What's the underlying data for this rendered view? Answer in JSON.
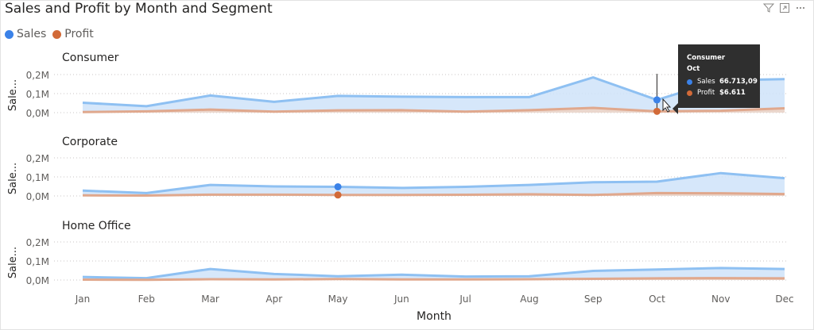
{
  "visual": {
    "title": "Sales and Profit by Month and Segment",
    "toolbar_icons": [
      "filter-icon",
      "focus-mode-icon",
      "more-options-icon"
    ]
  },
  "legend": [
    {
      "name": "Sales",
      "color": "#3b82e8"
    },
    {
      "name": "Profit",
      "color": "#d26a38"
    }
  ],
  "chart_data": {
    "type": "area",
    "title": "Sales and Profit by Month and Segment",
    "xlabel": "Month",
    "ylabel": "Sale...",
    "categories": [
      "Jan",
      "Feb",
      "Mar",
      "Apr",
      "May",
      "Jun",
      "Jul",
      "Aug",
      "Sep",
      "Oct",
      "Nov",
      "Dec"
    ],
    "ylim": [
      0,
      0.25
    ],
    "ytick_values": [
      0,
      0.1,
      0.2
    ],
    "ytick_labels": [
      "0,0M",
      "0,1M",
      "0,2M"
    ],
    "units": "millions",
    "grid": "horizontal dotted",
    "colors": {
      "sales": "#8ec0f2",
      "sales_fill": "#cfe3f9",
      "profit": "#e0a88d",
      "profit_fill": "#edd5c8",
      "highlight_sales": "#3b82e8",
      "highlight_profit": "#d26a38"
    },
    "panels": [
      {
        "segment": "Consumer",
        "series": [
          {
            "name": "Sales",
            "values": [
              0.052,
              0.034,
              0.09,
              0.057,
              0.088,
              0.084,
              0.082,
              0.082,
              0.185,
              0.067,
              0.17,
              0.176
            ]
          },
          {
            "name": "Profit",
            "values": [
              0.003,
              0.007,
              0.016,
              0.005,
              0.012,
              0.013,
              0.005,
              0.013,
              0.025,
              0.007,
              0.01,
              0.023
            ]
          }
        ]
      },
      {
        "segment": "Corporate",
        "series": [
          {
            "name": "Sales",
            "values": [
              0.028,
              0.015,
              0.058,
              0.05,
              0.048,
              0.042,
              0.048,
              0.058,
              0.072,
              0.075,
              0.12,
              0.093
            ]
          },
          {
            "name": "Profit",
            "values": [
              0.003,
              0.002,
              0.007,
              0.007,
              0.005,
              0.005,
              0.006,
              0.009,
              0.005,
              0.015,
              0.014,
              0.01
            ]
          }
        ]
      },
      {
        "segment": "Home Office",
        "series": [
          {
            "name": "Sales",
            "values": [
              0.016,
              0.01,
              0.058,
              0.032,
              0.02,
              0.028,
              0.018,
              0.02,
              0.048,
              0.055,
              0.063,
              0.058
            ]
          },
          {
            "name": "Profit",
            "values": [
              0.002,
              0.001,
              0.004,
              0.003,
              0.005,
              0.003,
              0.003,
              0.004,
              0.006,
              0.009,
              0.01,
              0.009
            ]
          }
        ]
      }
    ],
    "highlight": {
      "panel": 0,
      "month": "Oct",
      "secondary_panel": 1,
      "secondary_month": "May"
    },
    "tooltip": {
      "segment": "Consumer",
      "month": "Oct",
      "rows": [
        {
          "label": "Sales",
          "value": "66.713,09"
        },
        {
          "label": "Profit",
          "value": "$6.611"
        }
      ]
    }
  }
}
